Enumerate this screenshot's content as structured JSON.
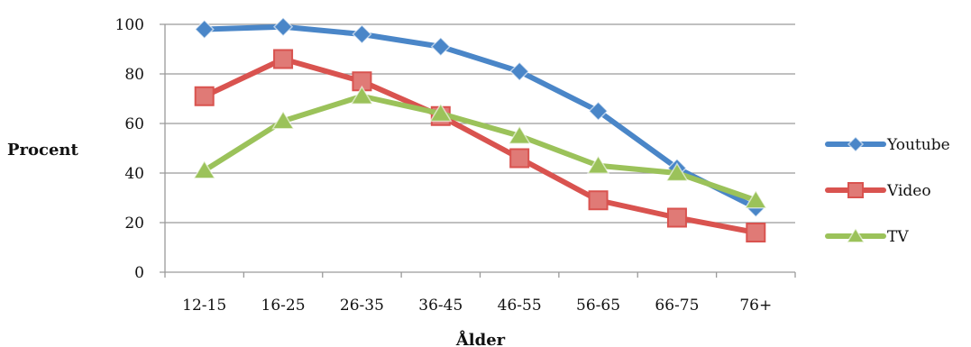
{
  "chart_data": {
    "type": "line",
    "title": "",
    "xlabel": "Ålder",
    "ylabel": "Procent",
    "categories": [
      "12-15",
      "16-25",
      "26-35",
      "36-45",
      "46-55",
      "56-65",
      "66-75",
      "76+"
    ],
    "ylim": [
      0,
      100
    ],
    "yticks": [
      0,
      20,
      40,
      60,
      80,
      100
    ],
    "grid": true,
    "legend_position": "right",
    "series": [
      {
        "name": "Youtube",
        "color": "#4a86c8",
        "marker": "diamond",
        "values": [
          98,
          99,
          96,
          91,
          81,
          65,
          42,
          26
        ]
      },
      {
        "name": "Video",
        "color": "#d9534f",
        "marker": "square",
        "values": [
          71,
          86,
          77,
          63,
          46,
          29,
          22,
          16
        ]
      },
      {
        "name": "TV",
        "color": "#9bc25a",
        "marker": "triangle",
        "values": [
          41,
          61,
          71,
          64,
          55,
          43,
          40,
          29
        ]
      }
    ]
  }
}
